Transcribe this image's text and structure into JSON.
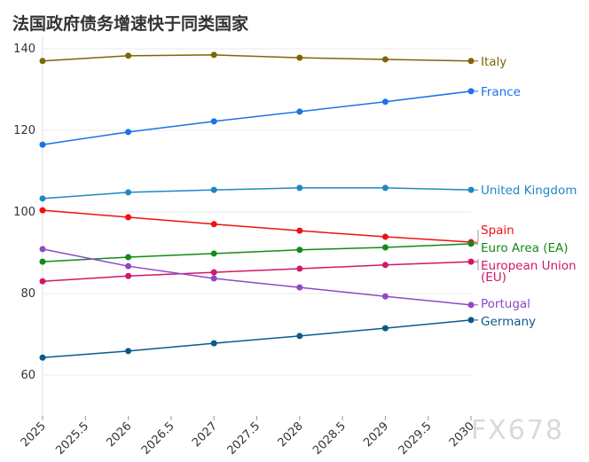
{
  "title": "法国政府债务增速快于同类国家",
  "watermark": "FX678",
  "chart_data": {
    "type": "line",
    "title": "法国政府债务增速快于同类国家",
    "x": [
      2025,
      2026,
      2027,
      2028,
      2029,
      2030
    ],
    "xlim": [
      2025,
      2030
    ],
    "x_ticks": [
      "2025",
      "2025.5",
      "2026",
      "2026.5",
      "2027",
      "2027.5",
      "2028",
      "2028.5",
      "2029",
      "2029.5",
      "2030"
    ],
    "ylim": [
      50,
      143
    ],
    "y_ticks": [
      "60",
      "80",
      "100",
      "120",
      "140"
    ],
    "grid": true,
    "legend": "end-of-line labels",
    "series": [
      {
        "name": "Italy",
        "color": "#7f6500",
        "values": [
          137.0,
          138.3,
          138.5,
          137.8,
          137.4,
          137.0
        ]
      },
      {
        "name": "France",
        "color": "#1a73e8",
        "values": [
          116.5,
          119.6,
          122.2,
          124.6,
          127.0,
          129.6
        ]
      },
      {
        "name": "United Kingdom",
        "color": "#1f87c4",
        "values": [
          103.3,
          104.8,
          105.4,
          105.9,
          105.9,
          105.4
        ]
      },
      {
        "name": "Spain",
        "color": "#ee1111",
        "values": [
          100.4,
          98.7,
          97.0,
          95.4,
          93.9,
          92.6
        ]
      },
      {
        "name": "Euro Area (EA)",
        "color": "#138a17",
        "values": [
          87.8,
          88.9,
          89.8,
          90.7,
          91.3,
          92.2
        ]
      },
      {
        "name": "European Union (EU)",
        "color": "#d0176a",
        "values": [
          83.0,
          84.3,
          85.2,
          86.1,
          87.0,
          87.8
        ]
      },
      {
        "name": "Portugal",
        "color": "#8e48c8",
        "values": [
          90.9,
          86.7,
          83.7,
          81.5,
          79.3,
          77.2
        ]
      },
      {
        "name": "Germany",
        "color": "#0b5a8a",
        "values": [
          64.3,
          65.9,
          67.8,
          69.6,
          71.5,
          73.5
        ]
      }
    ]
  }
}
